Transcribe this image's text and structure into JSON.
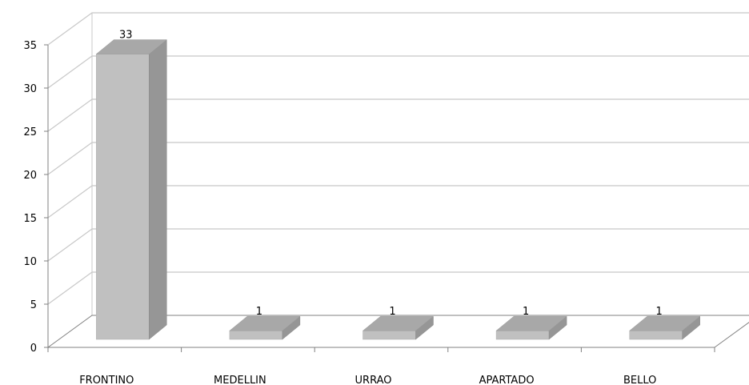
{
  "chart_data": {
    "type": "bar",
    "title": "",
    "xlabel": "",
    "ylabel": "",
    "categories": [
      "FRONTINO",
      "MEDELLIN",
      "URRAO",
      "APARTADO",
      "BELLO"
    ],
    "values": [
      33,
      1,
      1,
      1,
      1
    ],
    "data_labels": [
      "33",
      "1",
      "1",
      "1",
      "1"
    ],
    "ylim": [
      0,
      35
    ],
    "yticks": [
      0,
      5,
      10,
      15,
      20,
      25,
      30,
      35
    ],
    "ytick_labels": [
      "0",
      "5",
      "10",
      "15",
      "20",
      "25",
      "30",
      "35"
    ],
    "grid": true,
    "legend": "none",
    "style": "3d-column",
    "colors": {
      "front": "#c0c0c0",
      "side": "#969696",
      "top": "#a8a8a8",
      "grid": "#c8c8c8",
      "axis": "#808080"
    }
  }
}
